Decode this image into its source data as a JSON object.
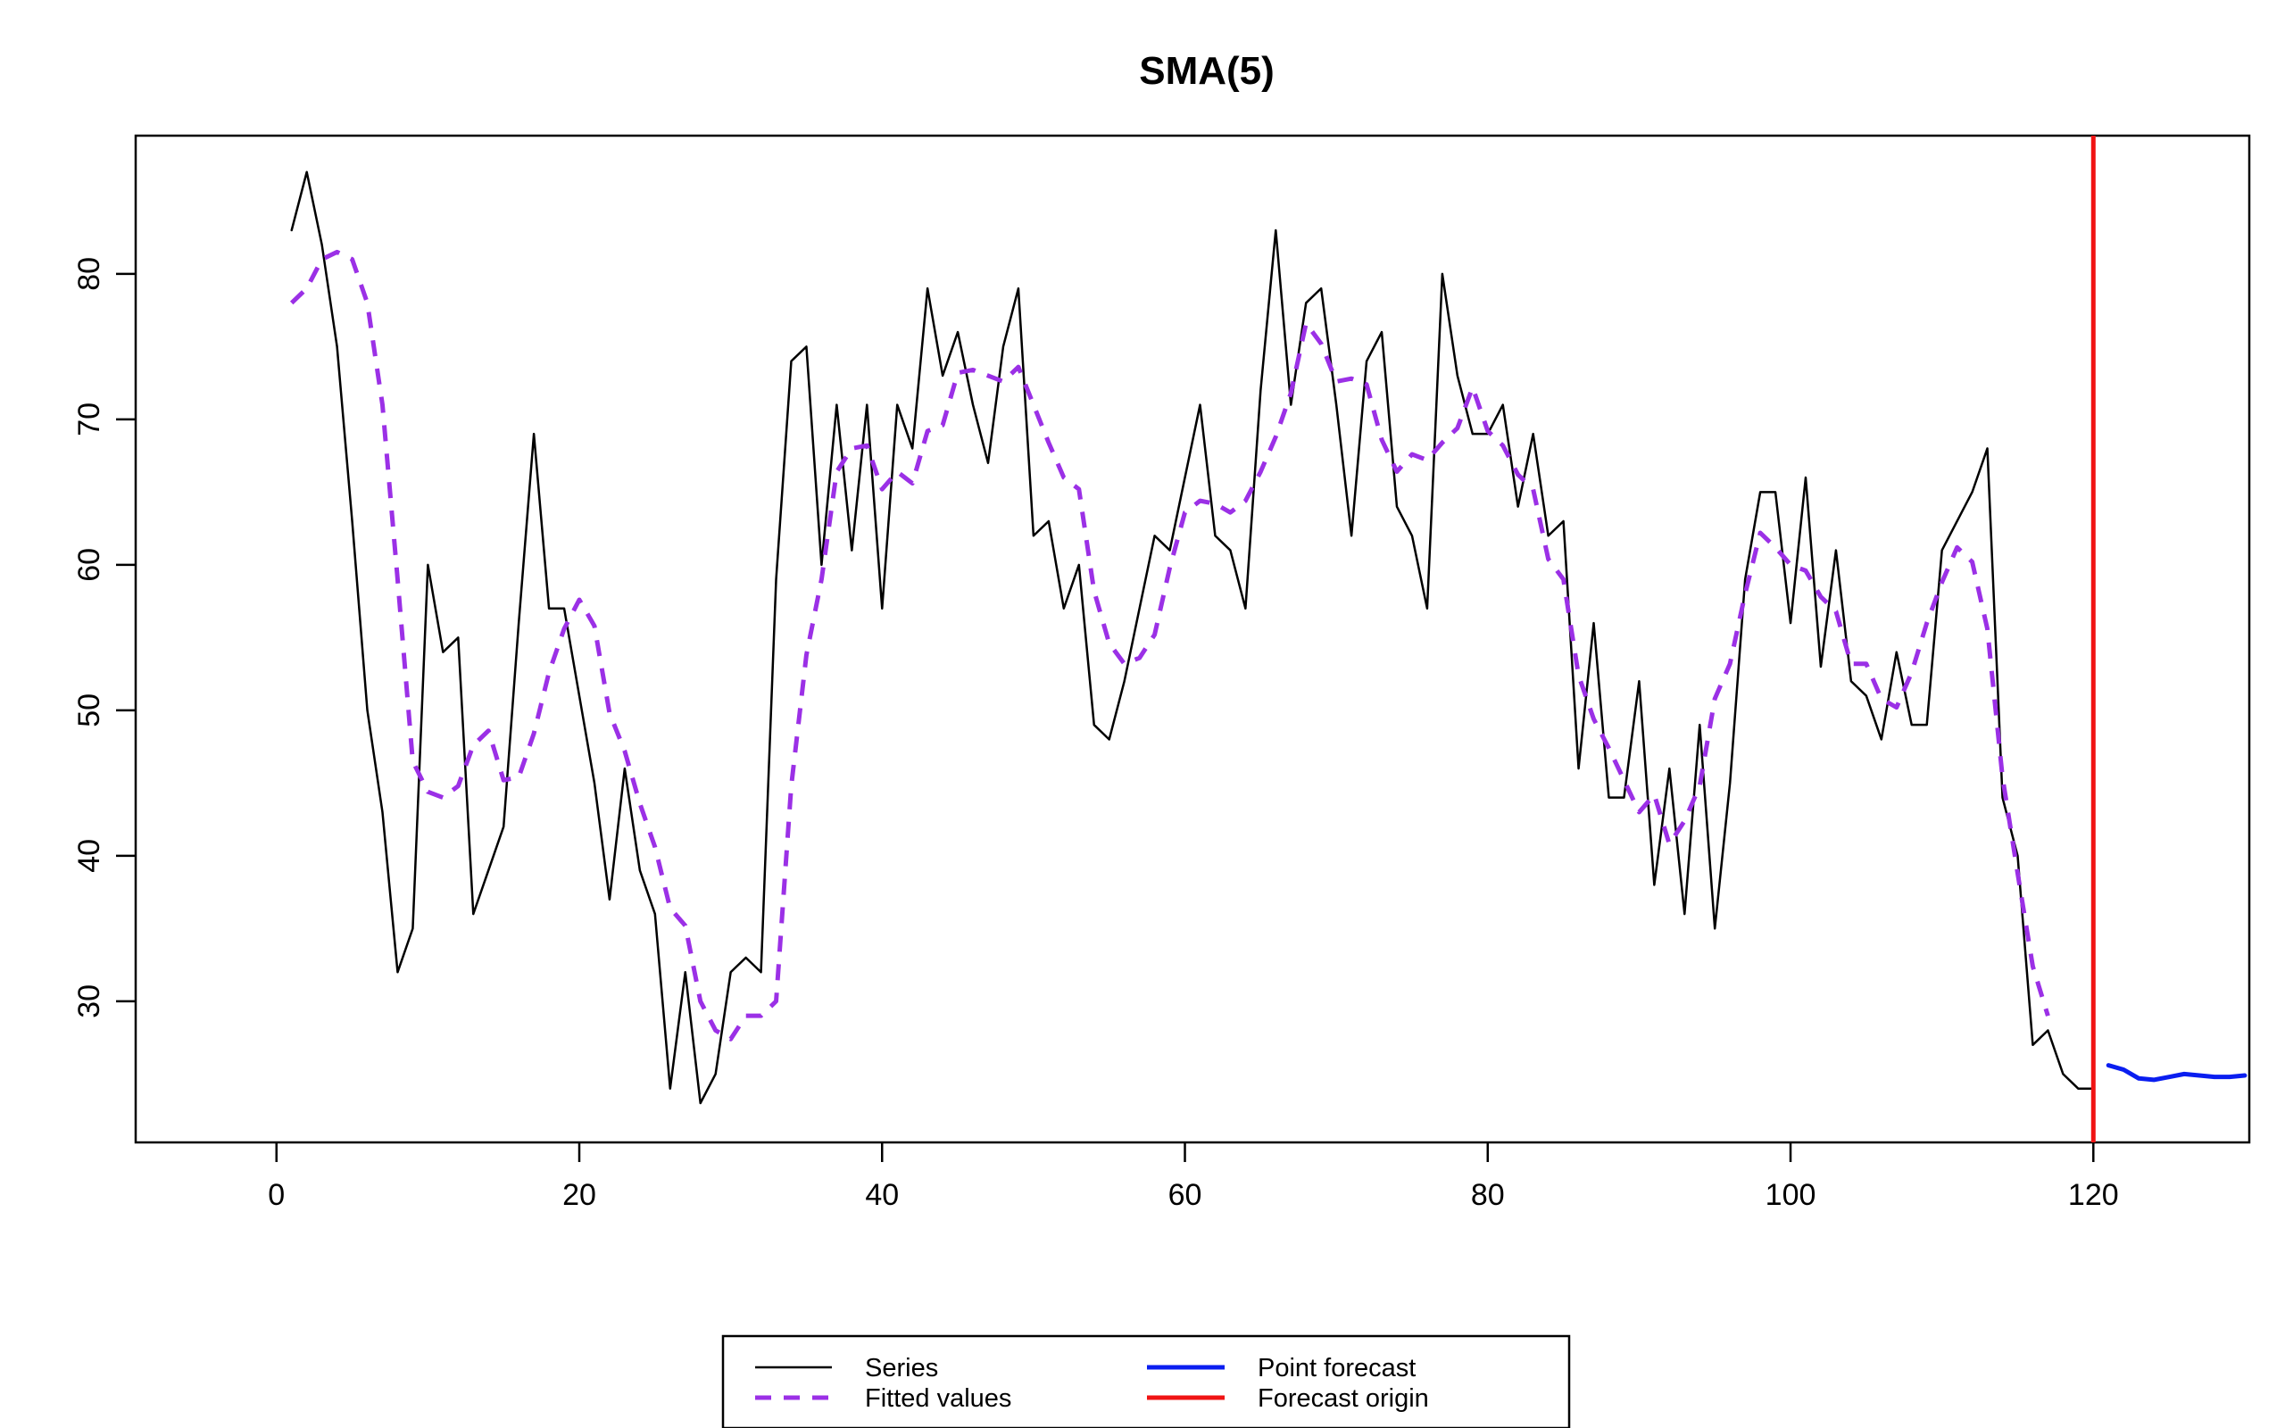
{
  "chart_data": {
    "type": "line",
    "title": "SMA(5)",
    "xlabel": "",
    "ylabel": "",
    "xlim": [
      -9.3,
      130.3
    ],
    "ylim": [
      20.3,
      89.5
    ],
    "x_ticks": [
      0,
      20,
      40,
      60,
      80,
      100,
      120
    ],
    "y_ticks": [
      30,
      40,
      50,
      60,
      70,
      80
    ],
    "grid": false,
    "forecast_origin": 120,
    "legend": {
      "placement": "bottom-center",
      "entries": [
        {
          "label": "Series",
          "color": "#000000",
          "style": "solid"
        },
        {
          "label": "Fitted values",
          "color": "#9b30e6",
          "style": "dashed"
        },
        {
          "label": "Point forecast",
          "color": "#0a1ef0",
          "style": "solid"
        },
        {
          "label": "Forecast origin",
          "color": "#f01414",
          "style": "solid"
        }
      ]
    },
    "series": [
      {
        "name": "Series",
        "color": "#000000",
        "style": "solid",
        "x_start": 1,
        "values": [
          83,
          87,
          82,
          75,
          63,
          50,
          43,
          32,
          35,
          60,
          54,
          55,
          36,
          39,
          42,
          56,
          69,
          57,
          57,
          51,
          45,
          37,
          46,
          39,
          36,
          24,
          32,
          23,
          25,
          32,
          33,
          32,
          59,
          74,
          75,
          60,
          71,
          61,
          71,
          57,
          71,
          68,
          79,
          73,
          76,
          71,
          67,
          75,
          79,
          62,
          63,
          57,
          60,
          49,
          48,
          52,
          57,
          62,
          61,
          66,
          71,
          62,
          61,
          57,
          72,
          83,
          71,
          78,
          79,
          71,
          62,
          74,
          76,
          64,
          62,
          57,
          80,
          73,
          69,
          69,
          71,
          64,
          69,
          62,
          63,
          46,
          56,
          44,
          44,
          52,
          38,
          46,
          36,
          49,
          35,
          45,
          59,
          65,
          65,
          56,
          66,
          53,
          61,
          52,
          51,
          48,
          54,
          49,
          49,
          61,
          63,
          65,
          68,
          44,
          40,
          27,
          28,
          25,
          24,
          24
        ]
      },
      {
        "name": "Fitted values",
        "color": "#9b30e6",
        "style": "dashed",
        "x_start": 1,
        "values": [
          78,
          79,
          81,
          81.5,
          81,
          78,
          71,
          59,
          46.5,
          44.4,
          44,
          44.8,
          47.6,
          48.6,
          45.2,
          45.4,
          48.4,
          52.6,
          55.6,
          57.6,
          55.8,
          49.8,
          47.2,
          43.6,
          40.6,
          36.4,
          35.2,
          30,
          28,
          27.4,
          29,
          29,
          30,
          44.8,
          53.8,
          59,
          66.4,
          68,
          68.2,
          65.2,
          66.4,
          65.6,
          69.2,
          69.6,
          73.2,
          73.4,
          73,
          72.6,
          73.6,
          71,
          68.4,
          66,
          65.2,
          58.2,
          54.6,
          53.2,
          53.6,
          55.2,
          59.8,
          63.6,
          64.4,
          64.2,
          63.6,
          64.4,
          66.4,
          68.8,
          71.8,
          76.6,
          75.2,
          72.6,
          72.8,
          72.4,
          68.6,
          66.4,
          67.6,
          67.2,
          68.4,
          69.4,
          72.2,
          69.2,
          68.2,
          66.2,
          65.2,
          60.4,
          59,
          52.4,
          49.4,
          47.4,
          45.2,
          43,
          44.2,
          40.8,
          42.4,
          44.8,
          50.8,
          53.2,
          58,
          62.2,
          61.2,
          60,
          59.6,
          57.8,
          56.8,
          53.2,
          53.2,
          50.8,
          50.2,
          52.6,
          56,
          58.8,
          61.2,
          60.2,
          55.6,
          45.4,
          38.8,
          32.4,
          29
        ]
      },
      {
        "name": "Point forecast",
        "color": "#0a1ef0",
        "style": "solid",
        "x_start": 121,
        "values": [
          25.6,
          25.3,
          24.7,
          24.6,
          24.8,
          25,
          24.9,
          24.8,
          24.8,
          24.9
        ]
      }
    ]
  }
}
